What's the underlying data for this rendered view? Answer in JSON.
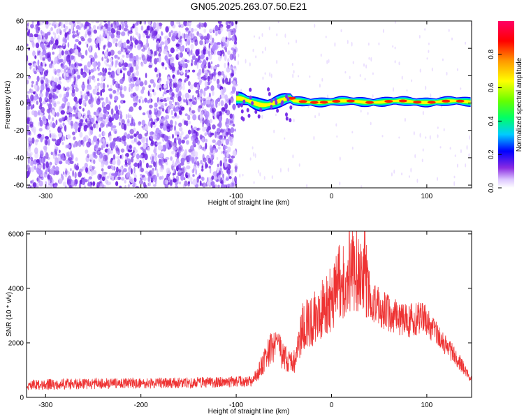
{
  "chart_data": [
    {
      "type": "heatmap",
      "title": "GN05.2025.263.07.50.E21",
      "xlabel": "Height of straight line (km)",
      "ylabel": "Frequency (Hz)",
      "xlim": [
        -320,
        147
      ],
      "ylim": [
        -62,
        60
      ],
      "xticks": [
        -300,
        -200,
        -100,
        0,
        100
      ],
      "yticks": [
        60,
        40,
        20,
        0,
        -20,
        -40,
        -60
      ],
      "grid": false,
      "colorbar": {
        "label": "Normalized spectral amplitude",
        "range": [
          0,
          1
        ],
        "ticks": [
          0.0,
          0.2,
          0.4,
          0.6,
          0.8
        ]
      },
      "regions": [
        {
          "x_range": [
            -320,
            -100
          ],
          "y_range": [
            -60,
            60
          ],
          "amplitude": 0.12,
          "description": "broadband noise"
        },
        {
          "x_range": [
            -100,
            -60
          ],
          "y_range": [
            -10,
            8
          ],
          "amplitude": 0.5,
          "description": "onset of signal near 0 Hz"
        },
        {
          "x_range": [
            -60,
            147
          ],
          "y_range": [
            -2,
            4
          ],
          "amplitude": 0.9,
          "description": "narrow band near 1 Hz"
        }
      ]
    },
    {
      "type": "line",
      "title": "",
      "xlabel": "Height of straight line (km)",
      "ylabel": "SNR (10 * v/v)",
      "xlim": [
        -320,
        147
      ],
      "ylim": [
        0,
        6100
      ],
      "xticks": [
        -300,
        -200,
        -100,
        0,
        100
      ],
      "yticks": [
        0,
        2000,
        4000,
        6000
      ],
      "series": [
        {
          "color": "#ee3333",
          "x": [
            -320,
            -300,
            -250,
            -200,
            -150,
            -110,
            -82,
            -70,
            -60,
            -50,
            -40,
            -30,
            -20,
            -10,
            0,
            10,
            15,
            20,
            30,
            35,
            40,
            50,
            60,
            70,
            80,
            90,
            100,
            110,
            120,
            130,
            140,
            147
          ],
          "values": [
            450,
            470,
            500,
            520,
            540,
            560,
            600,
            1400,
            2000,
            1500,
            1200,
            2600,
            2800,
            3200,
            3700,
            4300,
            4600,
            4700,
            4900,
            4600,
            3600,
            3300,
            3100,
            2900,
            2800,
            2900,
            2800,
            2300,
            1900,
            1500,
            1000,
            600
          ]
        }
      ]
    }
  ]
}
